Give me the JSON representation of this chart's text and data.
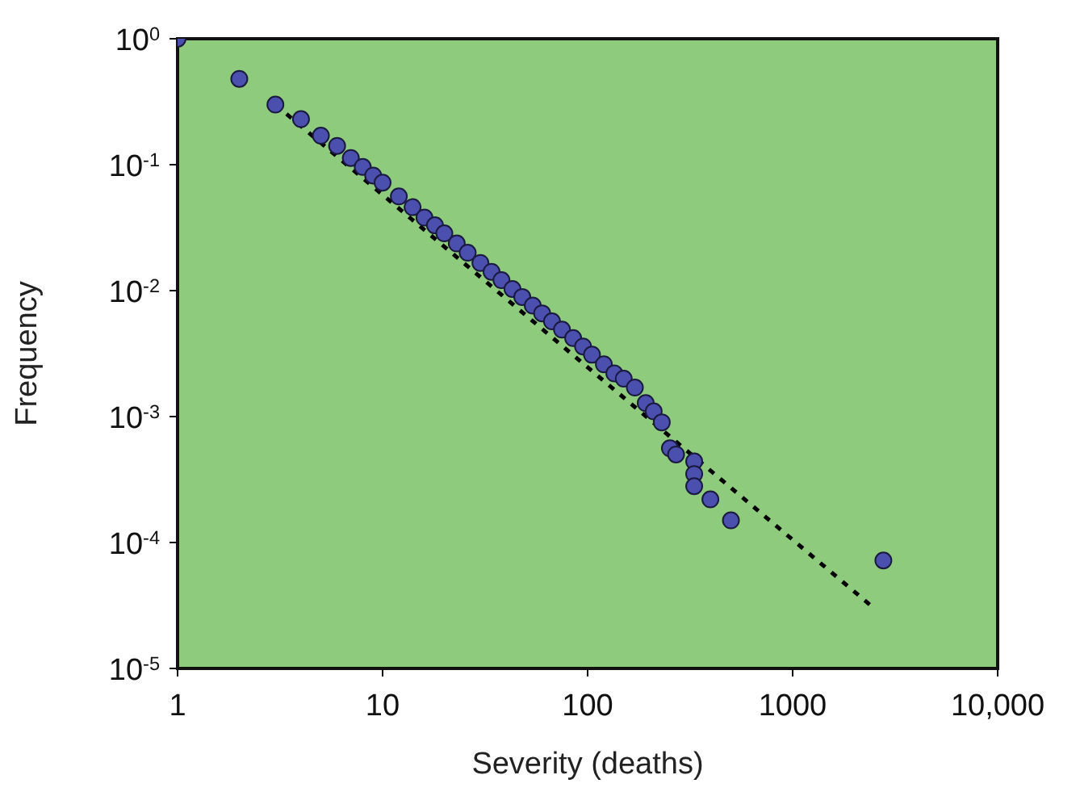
{
  "chart_data": {
    "type": "scatter",
    "xlabel": "Severity (deaths)",
    "ylabel": "Frequency",
    "log": "xy",
    "xlim": [
      1,
      10000
    ],
    "ylim": [
      1e-05,
      1
    ],
    "xticks": [
      1,
      10,
      100,
      1000,
      {
        "value": 10000,
        "label": "10,000"
      }
    ],
    "yticks": [
      {
        "value": 1e-05,
        "label": "10$^{-5}$"
      },
      {
        "value": 0.0001,
        "label": "10$^{-4}$"
      },
      {
        "value": 0.001,
        "label": "10$^{-3}$"
      },
      {
        "value": 0.01,
        "label": "10$^{-2}$"
      },
      {
        "value": 0.1,
        "label": "10$^{-1}$"
      },
      {
        "value": 1,
        "label": "10$^{0}$"
      }
    ],
    "series": [
      {
        "marker": "circle",
        "color": "#4b4fae",
        "x": [
          1,
          2,
          3,
          4,
          5,
          6,
          7,
          8,
          9,
          10,
          12,
          14,
          16,
          18,
          20,
          23,
          26,
          30,
          34,
          38,
          43,
          48,
          54,
          60,
          67,
          75,
          85,
          95,
          105,
          120,
          135,
          150,
          170,
          192,
          210,
          230,
          252,
          270,
          331,
          331,
          331,
          397,
          500,
          2770
        ],
        "values": [
          1,
          0.48,
          0.3,
          0.23,
          0.17,
          0.141,
          0.113,
          0.096,
          0.082,
          0.072,
          0.056,
          0.046,
          0.038,
          0.033,
          0.0285,
          0.0237,
          0.02,
          0.0166,
          0.0141,
          0.0121,
          0.0103,
          0.0089,
          0.0076,
          0.0066,
          0.0057,
          0.0049,
          0.0042,
          0.0036,
          0.0031,
          0.0026,
          0.0022,
          0.002,
          0.0017,
          0.00128,
          0.0011,
          0.0009,
          0.00056,
          0.0005,
          0.00044,
          0.00035,
          0.00028,
          0.00022,
          0.00015,
          7.2e-05
        ]
      },
      {
        "type": "line",
        "marker": "none",
        "line_style": "dashed",
        "color": "#000000",
        "x": [
          3,
          2500
        ],
        "values": [
          0.3,
          3e-05
        ]
      }
    ]
  }
}
